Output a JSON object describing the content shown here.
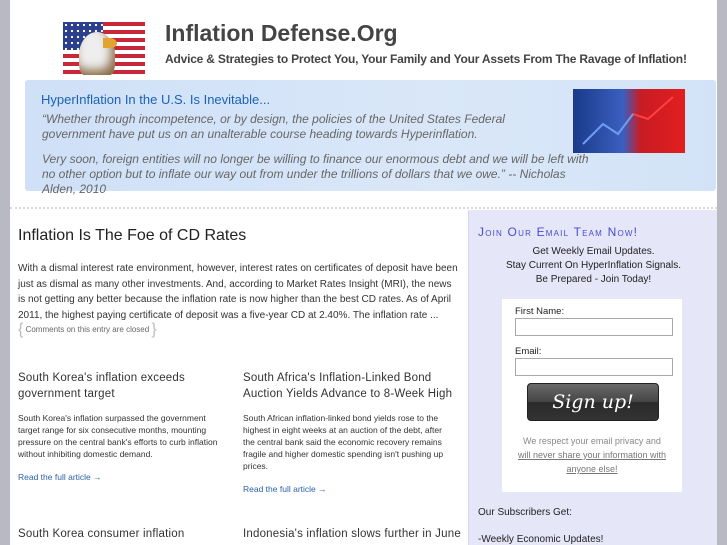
{
  "header": {
    "title": "Inflation Defense.Org",
    "tagline": "Advice & Strategies to Protect You, Your Family and Your Assets From The Ravage of Inflation!"
  },
  "banner": {
    "heading": "HyperInflation In the U.S. Is Inevitable...",
    "quote1": "“Whether through incompetence, or by design, the policies of the United States Federal government have put us on an unalterable course heading towards Hyperinflation.",
    "quote2": "Very soon, foreign entities will no longer be willing to finance our enormous debt and we will be left with no other option but to inflate our way out from under the trillions of dollars that we owe.” -- Nicholas Alden, 2010"
  },
  "post": {
    "title": "Inflation Is The Foe of CD Rates",
    "excerpt": "With a dismal interest rate environment, however, interest rates on certificates of deposit have been just as dismal as many other investments. And, according to Market Rates Insight (MRI), the news is not getting any better because the inflation rate is now higher than the best CD rates. As of April 2011, the highest paying certificate of deposit was a five-year CD at 2.40%. The inflation rate ...",
    "comments": "Comments on this entry are closed"
  },
  "articles": [
    {
      "title": "South Korea's inflation exceeds government target",
      "summary": "South Korea's inflation surpassed the government target range for six consecutive months, mounting pressure on the central bank's efforts to curb inflation without inhibiting domestic demand.",
      "link": "Read the full article →"
    },
    {
      "title": "South Africa's Inflation-Linked Bond Auction Yields Advance to 8-Week High",
      "summary": "South African inflation-linked bond yields rose to the highest in eight weeks at an auction of the debt, after the central bank said the economic recovery remains fragile and higher domestic spending isn't pushing up prices.",
      "link": "Read the full article →"
    },
    {
      "title": "South Korea consumer inflation"
    },
    {
      "title": "Indonesia's inflation slows further in June"
    }
  ],
  "sidebar": {
    "title": "Join Our Email Team Now!",
    "intro": [
      "Get Weekly Email Updates.",
      "Stay Current On HyperInflation Signals.",
      "Be Prepared - Join Today!"
    ],
    "first_name_label": "First Name:",
    "first_name_value": "",
    "email_label": "Email:",
    "email_value": "",
    "signup": "Sign up!",
    "privacy": "We respect your email privacy and",
    "privacy_link": "will never share your information with anyone else!",
    "subscribers_get": "Our Subscribers Get:",
    "benefit1": "-Weekly Economic Updates!"
  }
}
